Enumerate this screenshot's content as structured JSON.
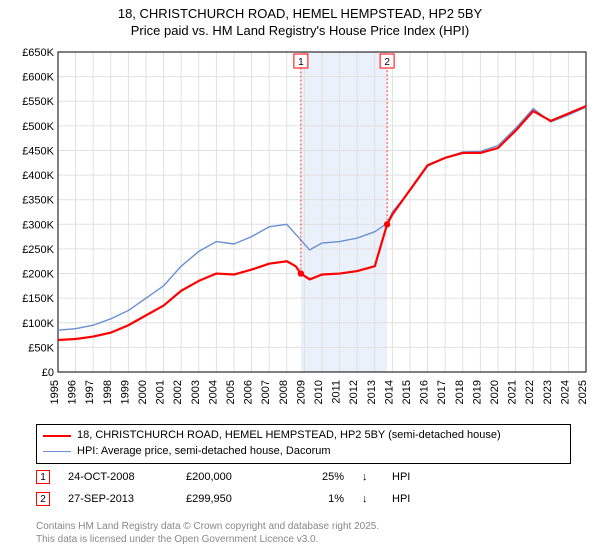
{
  "title_line1": "18, CHRISTCHURCH ROAD, HEMEL HEMPSTEAD, HP2 5BY",
  "title_line2": "Price paid vs. HM Land Registry's House Price Index (HPI)",
  "chart": {
    "type": "line",
    "background_color": "#ffffff",
    "grid_color": "#e0e0e0",
    "ylim": [
      0,
      650000
    ],
    "ytick_step": 50000,
    "yticks_labels": [
      "£0",
      "£50K",
      "£100K",
      "£150K",
      "£200K",
      "£250K",
      "£300K",
      "£350K",
      "£400K",
      "£450K",
      "£500K",
      "£550K",
      "£600K",
      "£650K"
    ],
    "x_years": [
      1995,
      1996,
      1997,
      1998,
      1999,
      2000,
      2001,
      2002,
      2003,
      2004,
      2005,
      2006,
      2007,
      2008,
      2009,
      2010,
      2011,
      2012,
      2013,
      2014,
      2015,
      2016,
      2017,
      2018,
      2019,
      2020,
      2021,
      2022,
      2023,
      2024,
      2025
    ],
    "highlight_band": {
      "x_start": 2008.8,
      "x_end": 2013.7,
      "color": "#ebf1fa"
    },
    "series": [
      {
        "name": "price_paid",
        "label": "18, CHRISTCHURCH ROAD, HEMEL HEMPSTEAD, HP2 5BY (semi-detached house)",
        "color": "#ff0000",
        "width": 2.2,
        "points": [
          [
            1995,
            65000
          ],
          [
            1996,
            67000
          ],
          [
            1997,
            72000
          ],
          [
            1998,
            80000
          ],
          [
            1999,
            95000
          ],
          [
            2000,
            115000
          ],
          [
            2001,
            135000
          ],
          [
            2002,
            165000
          ],
          [
            2003,
            185000
          ],
          [
            2004,
            200000
          ],
          [
            2005,
            198000
          ],
          [
            2006,
            208000
          ],
          [
            2007,
            220000
          ],
          [
            2008,
            225000
          ],
          [
            2008.5,
            215000
          ],
          [
            2008.8,
            200000
          ],
          [
            2009.3,
            188000
          ],
          [
            2010,
            198000
          ],
          [
            2011,
            200000
          ],
          [
            2012,
            205000
          ],
          [
            2013,
            215000
          ],
          [
            2013.7,
            300000
          ],
          [
            2014,
            320000
          ],
          [
            2015,
            370000
          ],
          [
            2016,
            420000
          ],
          [
            2017,
            435000
          ],
          [
            2018,
            445000
          ],
          [
            2019,
            445000
          ],
          [
            2020,
            455000
          ],
          [
            2021,
            490000
          ],
          [
            2022,
            530000
          ],
          [
            2023,
            510000
          ],
          [
            2024,
            525000
          ],
          [
            2025,
            540000
          ]
        ]
      },
      {
        "name": "hpi",
        "label": "HPI: Average price, semi-detached house, Dacorum",
        "color": "#6a8fd4",
        "width": 1.4,
        "points": [
          [
            1995,
            85000
          ],
          [
            1996,
            88000
          ],
          [
            1997,
            95000
          ],
          [
            1998,
            108000
          ],
          [
            1999,
            125000
          ],
          [
            2000,
            150000
          ],
          [
            2001,
            175000
          ],
          [
            2002,
            215000
          ],
          [
            2003,
            245000
          ],
          [
            2004,
            265000
          ],
          [
            2005,
            260000
          ],
          [
            2006,
            275000
          ],
          [
            2007,
            295000
          ],
          [
            2008,
            300000
          ],
          [
            2008.8,
            268000
          ],
          [
            2009.3,
            248000
          ],
          [
            2010,
            262000
          ],
          [
            2011,
            265000
          ],
          [
            2012,
            272000
          ],
          [
            2013,
            285000
          ],
          [
            2013.7,
            302000
          ],
          [
            2014,
            325000
          ],
          [
            2015,
            368000
          ],
          [
            2016,
            418000
          ],
          [
            2017,
            435000
          ],
          [
            2018,
            447000
          ],
          [
            2019,
            448000
          ],
          [
            2020,
            460000
          ],
          [
            2021,
            495000
          ],
          [
            2022,
            535000
          ],
          [
            2023,
            508000
          ],
          [
            2024,
            522000
          ],
          [
            2025,
            538000
          ]
        ]
      }
    ],
    "markers": [
      {
        "n": "1",
        "year": 2008.8,
        "price": 200000
      },
      {
        "n": "2",
        "year": 2013.7,
        "price": 300000
      }
    ]
  },
  "legend": {
    "items": [
      {
        "color": "#ff0000",
        "width": 2.2,
        "label_key": "chart.series.0.label"
      },
      {
        "color": "#6a8fd4",
        "width": 1.4,
        "label_key": "chart.series.1.label"
      }
    ]
  },
  "events": [
    {
      "n": "1",
      "date": "24-OCT-2008",
      "price": "£200,000",
      "pct": "25%",
      "arrow": "↓",
      "suffix": "HPI"
    },
    {
      "n": "2",
      "date": "27-SEP-2013",
      "price": "£299,950",
      "pct": "1%",
      "arrow": "↓",
      "suffix": "HPI"
    }
  ],
  "footer_line1": "Contains HM Land Registry data © Crown copyright and database right 2025.",
  "footer_line2": "This data is licensed under the Open Government Licence v3.0."
}
